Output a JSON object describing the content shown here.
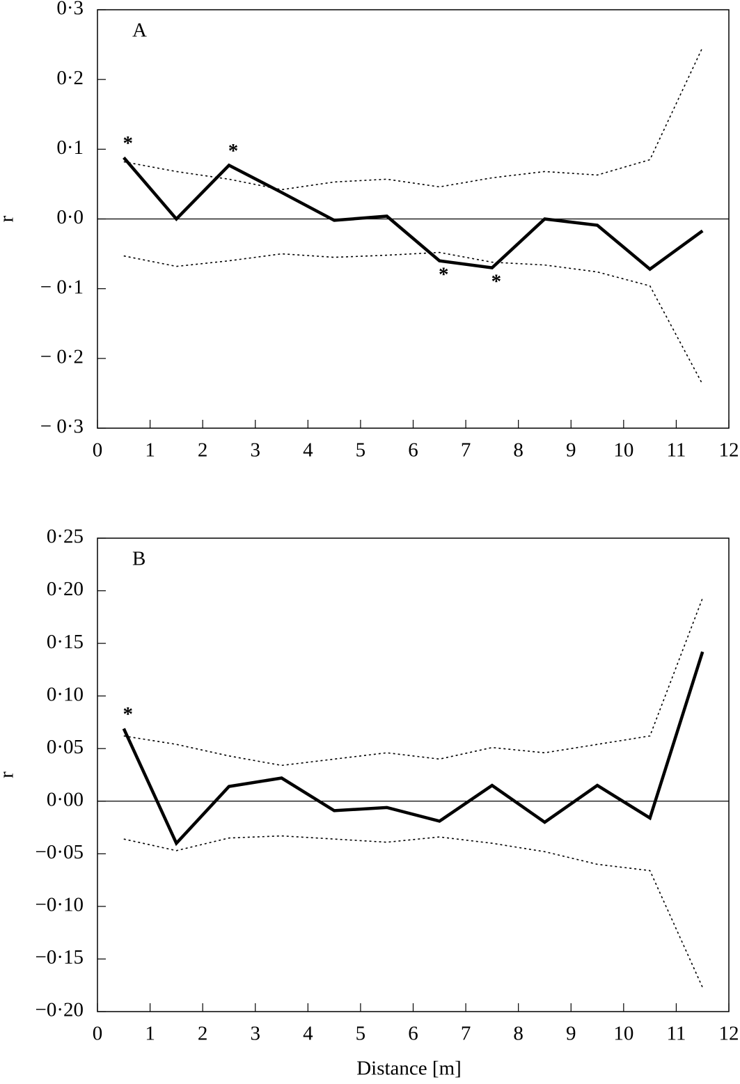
{
  "chart_data": [
    {
      "type": "line",
      "panel_label": "A",
      "y_label": "r",
      "x": [
        0.5,
        1.5,
        2.5,
        3.5,
        4.5,
        5.5,
        6.5,
        7.5,
        8.5,
        9.5,
        10.5,
        11.5
      ],
      "series": [
        {
          "color": "#000000",
          "style": "solid",
          "values": [
            0.088,
            0.0,
            0.077,
            0.038,
            -0.002,
            0.004,
            -0.06,
            -0.07,
            0.0,
            -0.009,
            -0.072,
            -0.017
          ]
        },
        {
          "color": "#000000",
          "style": "dotted",
          "values": [
            0.082,
            0.068,
            0.057,
            0.042,
            0.053,
            0.057,
            0.046,
            0.059,
            0.068,
            0.063,
            0.085,
            0.246
          ]
        },
        {
          "color": "#000000",
          "style": "dotted",
          "values": [
            -0.053,
            -0.068,
            -0.06,
            -0.05,
            -0.055,
            -0.052,
            -0.048,
            -0.062,
            -0.066,
            -0.076,
            -0.096,
            -0.237
          ]
        }
      ],
      "annotations": [
        {
          "index": 0,
          "text": "*"
        },
        {
          "index": 2,
          "text": "*"
        },
        {
          "index": 6,
          "text": "*"
        },
        {
          "index": 7,
          "text": "*"
        }
      ],
      "xlim": [
        0,
        12
      ],
      "xticks": [
        0,
        1,
        2,
        3,
        4,
        5,
        6,
        7,
        8,
        9,
        10,
        11,
        12
      ],
      "ylim": [
        -0.3,
        0.3
      ],
      "yticks": [
        {
          "value": 0.3,
          "label": "0·3"
        },
        {
          "value": 0.2,
          "label": "0·2"
        },
        {
          "value": 0.1,
          "label": "0·1"
        },
        {
          "value": 0.0,
          "label": "0·0"
        },
        {
          "value": -0.1,
          "label": "− 0·1"
        },
        {
          "value": -0.2,
          "label": "− 0·2"
        },
        {
          "value": -0.3,
          "label": "− 0·3"
        }
      ]
    },
    {
      "type": "line",
      "panel_label": "B",
      "y_label": "r",
      "x_label": "Distance [m]",
      "x": [
        0.5,
        1.5,
        2.5,
        3.5,
        4.5,
        5.5,
        6.5,
        7.5,
        8.5,
        9.5,
        10.5,
        11.5
      ],
      "series": [
        {
          "color": "#000000",
          "style": "solid",
          "values": [
            0.069,
            -0.04,
            0.014,
            0.022,
            -0.009,
            -0.006,
            -0.019,
            0.015,
            -0.02,
            0.015,
            -0.016,
            0.142
          ]
        },
        {
          "color": "#000000",
          "style": "dotted",
          "values": [
            0.062,
            0.054,
            0.043,
            0.034,
            0.04,
            0.046,
            0.04,
            0.051,
            0.046,
            0.054,
            0.062,
            0.193
          ]
        },
        {
          "color": "#000000",
          "style": "dotted",
          "values": [
            -0.036,
            -0.047,
            -0.035,
            -0.033,
            -0.036,
            -0.039,
            -0.034,
            -0.04,
            -0.048,
            -0.06,
            -0.066,
            -0.177
          ]
        }
      ],
      "annotations": [
        {
          "index": 0,
          "text": "*"
        }
      ],
      "xlim": [
        0,
        12
      ],
      "xticks": [
        0,
        1,
        2,
        3,
        4,
        5,
        6,
        7,
        8,
        9,
        10,
        11,
        12
      ],
      "ylim": [
        -0.2,
        0.25
      ],
      "yticks": [
        {
          "value": 0.25,
          "label": "0·25"
        },
        {
          "value": 0.2,
          "label": "0·20"
        },
        {
          "value": 0.15,
          "label": "0·15"
        },
        {
          "value": 0.1,
          "label": "0·10"
        },
        {
          "value": 0.05,
          "label": "0·05"
        },
        {
          "value": 0.0,
          "label": "0·00"
        },
        {
          "value": -0.05,
          "label": "−0·05"
        },
        {
          "value": -0.1,
          "label": "−0·10"
        },
        {
          "value": -0.15,
          "label": "−0·15"
        },
        {
          "value": -0.2,
          "label": "−0·20"
        }
      ]
    }
  ]
}
